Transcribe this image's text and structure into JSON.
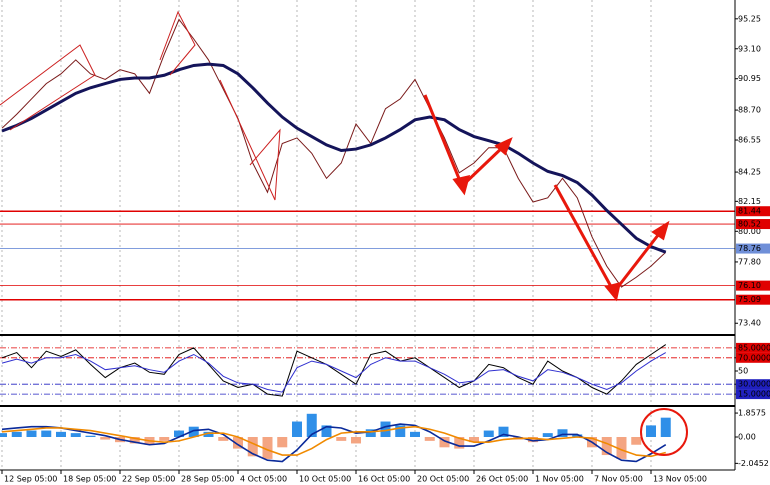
{
  "chart_data": [
    {
      "type": "line",
      "ylim": [
        72.7,
        96.6
      ],
      "yticks": [
        95.25,
        {
          "value": 93.1,
          "label": "93.10"
        },
        90.95,
        {
          "value": 88.7,
          "label": "88.70"
        },
        86.55,
        84.25,
        82.15,
        {
          "value": 80,
          "label": "80.00"
        },
        {
          "value": 77.8,
          "label": "77.80"
        },
        {
          "value": 73.4,
          "label": "73.40"
        }
      ],
      "levels": [
        {
          "value": 81.44,
          "color": "#e00000"
        },
        {
          "value": 80.52,
          "color": "#e00000"
        },
        {
          "value": 78.76,
          "color": "#6f8fd8"
        },
        {
          "value": 76.1,
          "label": "76.10",
          "color": "#e00000"
        },
        {
          "value": 75.09,
          "color": "#e00000"
        }
      ],
      "categories": [
        "12 Sep 05:00",
        null,
        null,
        null,
        "18 Sep 05:00",
        null,
        null,
        null,
        "22 Sep 05:00",
        null,
        null,
        null,
        "28 Sep 05:00",
        null,
        null,
        null,
        "4 Oct 05:00",
        null,
        null,
        null,
        "10 Oct 05:00",
        null,
        null,
        null,
        "16 Oct 05:00",
        null,
        null,
        null,
        "20 Oct 05:00",
        null,
        null,
        null,
        "26 Oct 05:00",
        null,
        null,
        null,
        "1 Nov 05:00",
        null,
        null,
        null,
        "7 Nov 05:00",
        null,
        null,
        null,
        "13 Nov 05:00",
        null
      ],
      "series": [
        {
          "color": "#7a1a1a",
          "values": [
            87.4,
            88.4,
            89.5,
            90.6,
            91.3,
            92.3,
            91.3,
            90.9,
            91.6,
            91.3,
            89.9,
            92.7,
            95.2,
            93.8,
            92.3,
            90.2,
            88.1,
            84.9,
            82.8,
            86.3,
            86.7,
            85.6,
            83.8,
            84.9,
            87.7,
            86.3,
            88.8,
            89.5,
            90.9,
            88.8,
            86.7,
            84.2,
            84.9,
            86.0,
            86.0,
            83.8,
            82.1,
            82.4,
            83.8,
            82.4,
            79.6,
            77.5,
            76.0,
            76.7,
            77.5,
            78.5
          ]
        },
        {
          "color": "#14145a",
          "values": [
            87.2,
            87.6,
            88.1,
            88.7,
            89.3,
            89.9,
            90.3,
            90.6,
            90.9,
            91.0,
            91.0,
            91.2,
            91.6,
            91.9,
            92.0,
            91.9,
            91.3,
            90.3,
            89.2,
            88.2,
            87.4,
            86.8,
            86.2,
            85.8,
            85.9,
            86.2,
            86.7,
            87.3,
            88.0,
            88.2,
            88.0,
            87.3,
            86.8,
            86.5,
            86.2,
            85.6,
            84.9,
            84.3,
            84.0,
            83.5,
            82.6,
            81.5,
            80.5,
            79.5,
            78.9,
            78.5
          ]
        }
      ]
    },
    {
      "type": "line",
      "ylim": [
        0,
        100
      ],
      "yticks": [
        {
          "value": 85,
          "label": "85.0000",
          "color": "#e00000"
        },
        {
          "value": 70,
          "label": "70.0000",
          "color": "#e00000"
        },
        50,
        {
          "value": 30,
          "label": "30.0000",
          "color": "#2020c0"
        },
        {
          "value": 15,
          "label": "15.0000",
          "color": "#2020c0"
        }
      ],
      "series": [
        {
          "color": "#000000",
          "values": [
            70,
            78,
            55,
            80,
            72,
            82,
            60,
            40,
            55,
            62,
            48,
            45,
            75,
            85,
            60,
            35,
            25,
            30,
            15,
            12,
            80,
            70,
            60,
            45,
            30,
            75,
            80,
            65,
            70,
            55,
            40,
            25,
            35,
            60,
            55,
            40,
            30,
            65,
            50,
            40,
            25,
            15,
            35,
            60,
            75,
            90
          ]
        },
        {
          "color": "#3030d0",
          "values": [
            62,
            68,
            62,
            70,
            70,
            75,
            65,
            52,
            55,
            58,
            52,
            48,
            65,
            75,
            62,
            42,
            32,
            30,
            22,
            18,
            55,
            65,
            60,
            50,
            40,
            60,
            70,
            65,
            65,
            55,
            45,
            32,
            35,
            50,
            52,
            42,
            35,
            52,
            48,
            40,
            30,
            22,
            32,
            50,
            65,
            78
          ]
        }
      ]
    },
    {
      "type": "bar",
      "ylim": [
        -2.56,
        2.25
      ],
      "yticks": [
        1.8575,
        {
          "value": 0,
          "label": "0.00"
        },
        -2.0452
      ],
      "color_positive": "#2f8fe8",
      "color_negative": "#f4a582",
      "values": [
        0.3,
        0.4,
        0.5,
        0.5,
        0.4,
        0.3,
        0.1,
        -0.2,
        -0.4,
        -0.5,
        -0.6,
        -0.3,
        0.5,
        0.8,
        0.4,
        -0.3,
        -0.9,
        -1.5,
        -1.7,
        -0.8,
        1.2,
        1.8,
        0.9,
        -0.3,
        -0.5,
        0.6,
        1.2,
        0.9,
        0.4,
        -0.3,
        -0.8,
        -0.9,
        -0.4,
        0.5,
        0.8,
        -0.2,
        -0.4,
        0.3,
        0.6,
        0.2,
        -0.8,
        -1.4,
        -1.7,
        -0.6,
        0.9,
        1.5
      ],
      "series": [
        {
          "color": "#0a2a9a",
          "values": [
            0.6,
            0.7,
            0.8,
            0.8,
            0.7,
            0.5,
            0.3,
            0.1,
            -0.2,
            -0.4,
            -0.6,
            -0.5,
            0.0,
            0.5,
            0.6,
            0.2,
            -0.6,
            -1.3,
            -1.8,
            -1.9,
            -1.0,
            0.2,
            0.8,
            0.7,
            0.3,
            0.4,
            0.8,
            1.0,
            0.9,
            0.4,
            -0.3,
            -0.7,
            -0.7,
            -0.3,
            0.2,
            0.0,
            -0.3,
            -0.2,
            0.2,
            0.2,
            -0.4,
            -1.2,
            -1.8,
            -1.9,
            -1.3,
            -0.6
          ]
        },
        {
          "color": "#f08a00",
          "values": [
            0.4,
            0.5,
            0.6,
            0.7,
            0.7,
            0.6,
            0.5,
            0.3,
            0.1,
            -0.1,
            -0.3,
            -0.4,
            -0.3,
            0.0,
            0.3,
            0.3,
            0.0,
            -0.5,
            -1.0,
            -1.4,
            -1.4,
            -0.9,
            -0.2,
            0.3,
            0.4,
            0.4,
            0.5,
            0.7,
            0.8,
            0.6,
            0.3,
            -0.1,
            -0.4,
            -0.4,
            -0.2,
            -0.1,
            -0.1,
            -0.2,
            -0.1,
            0.0,
            -0.1,
            -0.5,
            -1.0,
            -1.4,
            -1.5,
            -1.2
          ]
        }
      ]
    }
  ]
}
